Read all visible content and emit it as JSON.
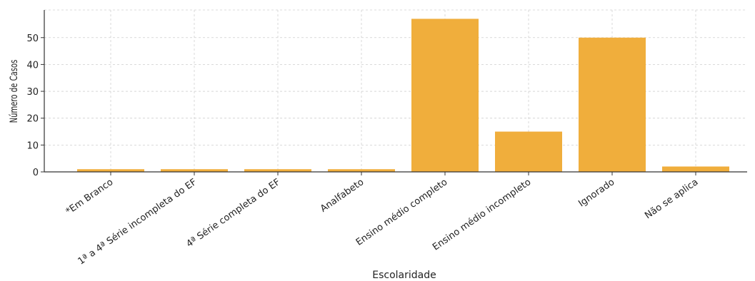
{
  "chart_data": {
    "type": "bar",
    "title": "",
    "xlabel": "Escolaridade",
    "ylabel": "Número de Casos",
    "categories": [
      "*Em Branco",
      "1ª a 4ª Série incompleta do EF",
      "4ª Série completa do EF",
      "Analfabeto",
      "Ensino médio completo",
      "Ensino médio incompleto",
      "Ignorado",
      "Não se aplica"
    ],
    "values": [
      1,
      1,
      1,
      1,
      57,
      15,
      50,
      2
    ],
    "ylim": [
      0,
      60
    ],
    "yticks": [
      0,
      10,
      20,
      30,
      40,
      50
    ],
    "grid": true,
    "bar_color": "#f0ae3c"
  }
}
